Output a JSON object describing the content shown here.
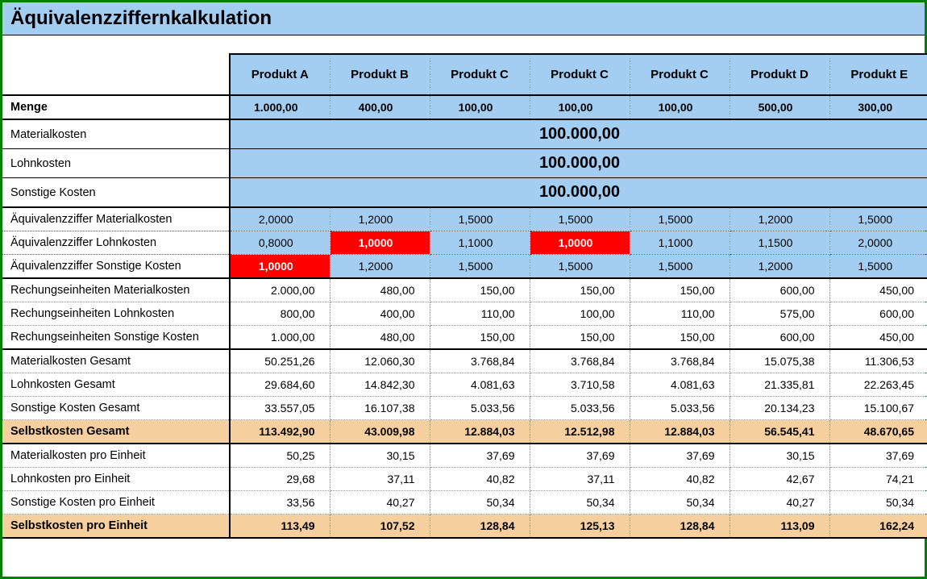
{
  "title": "Äquivalenzziffernkalkulation",
  "columns": [
    "Produkt A",
    "Produkt B",
    "Produkt C",
    "Produkt C",
    "Produkt C",
    "Produkt D",
    "Produkt E"
  ],
  "rows": {
    "menge": {
      "label": "Menge",
      "values": [
        "1.000,00",
        "400,00",
        "100,00",
        "100,00",
        "100,00",
        "500,00",
        "300,00"
      ]
    },
    "materialkosten": {
      "label": "Materialkosten",
      "merged": "100.000,00"
    },
    "lohnkosten": {
      "label": "Lohnkosten",
      "merged": "100.000,00"
    },
    "sonstige": {
      "label": "Sonstige Kosten",
      "merged": "100.000,00"
    },
    "eq_mat": {
      "label": "Äquivalenzziffer Materialkosten",
      "values": [
        "2,0000",
        "1,2000",
        "1,5000",
        "1,5000",
        "1,5000",
        "1,2000",
        "1,5000"
      ],
      "red": []
    },
    "eq_lohn": {
      "label": "Äquivalenzziffer Lohnkosten",
      "values": [
        "0,8000",
        "1,0000",
        "1,1000",
        "1,0000",
        "1,1000",
        "1,1500",
        "2,0000"
      ],
      "red": [
        1,
        3
      ]
    },
    "eq_sonst": {
      "label": "Äquivalenzziffer Sonstige Kosten",
      "values": [
        "1,0000",
        "1,2000",
        "1,5000",
        "1,5000",
        "1,5000",
        "1,2000",
        "1,5000"
      ],
      "red": [
        0
      ]
    },
    "re_mat": {
      "label": "Rechungseinheiten Materialkosten",
      "values": [
        "2.000,00",
        "480,00",
        "150,00",
        "150,00",
        "150,00",
        "600,00",
        "450,00"
      ]
    },
    "re_lohn": {
      "label": "Rechungseinheiten Lohnkosten",
      "values": [
        "800,00",
        "400,00",
        "110,00",
        "100,00",
        "110,00",
        "575,00",
        "600,00"
      ]
    },
    "re_sonst": {
      "label": "Rechungseinheiten Sonstige Kosten",
      "values": [
        "1.000,00",
        "480,00",
        "150,00",
        "150,00",
        "150,00",
        "600,00",
        "450,00"
      ]
    },
    "ges_mat": {
      "label": "Materialkosten Gesamt",
      "values": [
        "50.251,26",
        "12.060,30",
        "3.768,84",
        "3.768,84",
        "3.768,84",
        "15.075,38",
        "11.306,53"
      ]
    },
    "ges_lohn": {
      "label": "Lohnkosten Gesamt",
      "values": [
        "29.684,60",
        "14.842,30",
        "4.081,63",
        "3.710,58",
        "4.081,63",
        "21.335,81",
        "22.263,45"
      ]
    },
    "ges_sonst": {
      "label": "Sonstige Kosten Gesamt",
      "values": [
        "33.557,05",
        "16.107,38",
        "5.033,56",
        "5.033,56",
        "5.033,56",
        "20.134,23",
        "15.100,67"
      ]
    },
    "selbst_ges": {
      "label": "Selbstkosten Gesamt",
      "values": [
        "113.492,90",
        "43.009,98",
        "12.884,03",
        "12.512,98",
        "12.884,03",
        "56.545,41",
        "48.670,65"
      ]
    },
    "pe_mat": {
      "label": "Materialkosten pro Einheit",
      "values": [
        "50,25",
        "30,15",
        "37,69",
        "37,69",
        "37,69",
        "30,15",
        "37,69"
      ]
    },
    "pe_lohn": {
      "label": "Lohnkosten pro Einheit",
      "values": [
        "29,68",
        "37,11",
        "40,82",
        "37,11",
        "40,82",
        "42,67",
        "74,21"
      ]
    },
    "pe_sonst": {
      "label": "Sonstige Kosten pro Einheit",
      "values": [
        "33,56",
        "40,27",
        "50,34",
        "50,34",
        "50,34",
        "40,27",
        "50,34"
      ]
    },
    "selbst_pe": {
      "label": "Selbstkosten pro Einheit",
      "values": [
        "113,49",
        "107,52",
        "128,84",
        "125,13",
        "128,84",
        "113,09",
        "162,24"
      ]
    }
  },
  "colors": {
    "header_bg": "#a3cdf1",
    "highlight_bg": "#ff0000",
    "highlight_text": "#ffffff",
    "total_bg": "#f6cf9e",
    "border_green": "#008000"
  }
}
